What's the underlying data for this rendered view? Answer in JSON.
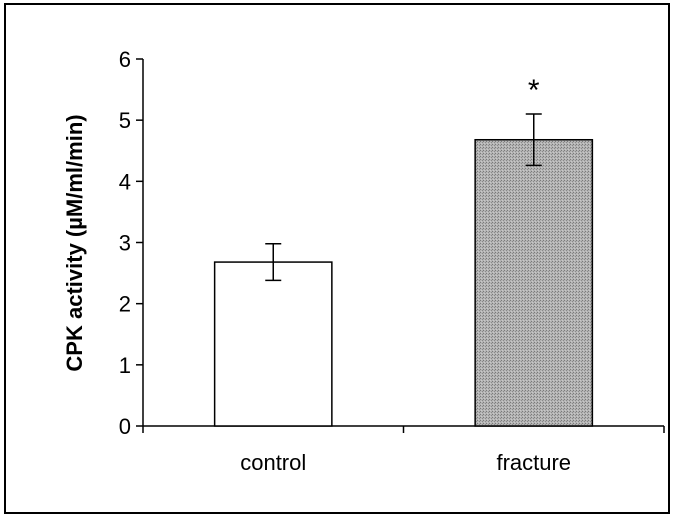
{
  "chart_data": {
    "type": "bar",
    "categories": [
      "control",
      "fracture"
    ],
    "values": [
      2.68,
      4.68
    ],
    "errors": [
      0.3,
      0.42
    ],
    "ylabel": "CPK activity (µM/ml/min)",
    "xlabel": "",
    "ylim": [
      0,
      6
    ],
    "yticks": [
      0,
      1,
      2,
      3,
      4,
      5,
      6
    ],
    "annotations": [
      {
        "category": "fracture",
        "text": "*"
      }
    ],
    "bar_fills": [
      "#ffffff",
      "#a9a9a9"
    ],
    "grid": false,
    "legend": "none"
  }
}
